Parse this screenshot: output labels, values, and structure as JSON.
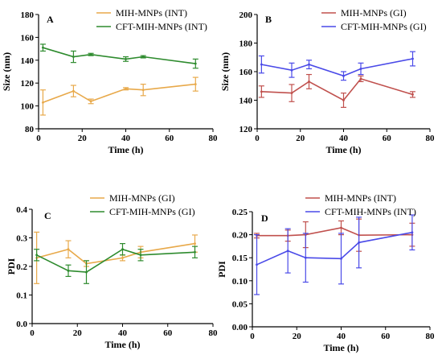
{
  "chart_data": [
    {
      "panel": "A",
      "type": "line",
      "xlabel": "Time (h)",
      "ylabel": "Size (nm)",
      "xlim": [
        0,
        80
      ],
      "ylim": [
        80,
        180
      ],
      "xticks": [
        0,
        20,
        40,
        60,
        80
      ],
      "yticks": [
        80,
        100,
        120,
        140,
        160,
        180
      ],
      "legend_position": "top",
      "series": [
        {
          "name": "MIH-MNPs (INT)",
          "color": "#e8a94a",
          "x": [
            2,
            16,
            24,
            40,
            48,
            72
          ],
          "y": [
            103,
            113,
            104,
            115,
            114,
            119
          ],
          "err": [
            11,
            5,
            2,
            1,
            5,
            6
          ]
        },
        {
          "name": "CFT-MIH-MNPs (INT)",
          "color": "#2e8b2e",
          "x": [
            2,
            16,
            24,
            40,
            48,
            72
          ],
          "y": [
            151,
            143,
            145,
            141,
            143,
            137
          ],
          "err": [
            3,
            5,
            1,
            2,
            1,
            4
          ]
        }
      ]
    },
    {
      "panel": "B",
      "type": "line",
      "xlabel": "Time (h)",
      "ylabel": "Size (nm)",
      "xlim": [
        0,
        80
      ],
      "ylim": [
        120,
        200
      ],
      "xticks": [
        0,
        20,
        40,
        60,
        80
      ],
      "yticks": [
        120,
        140,
        160,
        180,
        200
      ],
      "legend_position": "top",
      "series": [
        {
          "name": "MIH-MNPs (GI)",
          "color": "#c0504d",
          "x": [
            2,
            16,
            24,
            40,
            48,
            72
          ],
          "y": [
            146,
            145,
            153,
            140,
            155,
            144
          ],
          "err": [
            4,
            6,
            5,
            5,
            2,
            2
          ]
        },
        {
          "name": "CFT-MIH-MNPs (GI)",
          "color": "#4a4ae8",
          "x": [
            2,
            16,
            24,
            40,
            48,
            72
          ],
          "y": [
            165,
            161,
            165,
            157,
            162,
            169
          ],
          "err": [
            6,
            5,
            3,
            3,
            4,
            5
          ]
        }
      ]
    },
    {
      "panel": "C",
      "type": "line",
      "xlabel": "Time (h)",
      "ylabel": "PDI",
      "xlim": [
        0,
        80
      ],
      "ylim": [
        0.0,
        0.4
      ],
      "xticks": [
        0,
        20,
        40,
        60,
        80
      ],
      "yticks": [
        "0.0",
        "0.1",
        "0.2",
        "0.3",
        "0.4"
      ],
      "legend_position": "top",
      "series": [
        {
          "name": "MIH-MNPs (GI)",
          "color": "#e8a94a",
          "x": [
            2,
            16,
            24,
            40,
            48,
            72
          ],
          "y": [
            0.23,
            0.26,
            0.21,
            0.23,
            0.25,
            0.28
          ],
          "err": [
            0.09,
            0.03,
            0.01,
            0.01,
            0.02,
            0.03
          ]
        },
        {
          "name": "CFT-MIH-MNPs (GI)",
          "color": "#2e8b2e",
          "x": [
            2,
            16,
            24,
            40,
            48,
            72
          ],
          "y": [
            0.24,
            0.185,
            0.18,
            0.26,
            0.24,
            0.25
          ],
          "err": [
            0.02,
            0.02,
            0.04,
            0.02,
            0.02,
            0.02
          ]
        }
      ]
    },
    {
      "panel": "D",
      "type": "line",
      "xlabel": "Time (h)",
      "ylabel": "PDI",
      "xlim": [
        0,
        80
      ],
      "ylim": [
        0.0,
        0.25
      ],
      "xticks": [
        0,
        20,
        40,
        60,
        80
      ],
      "yticks": [
        "0.00",
        "0.05",
        "0.10",
        "0.15",
        "0.20",
        "0.25"
      ],
      "legend_position": "top",
      "series": [
        {
          "name": "MIH-MNPs (INT)",
          "color": "#c0504d",
          "x": [
            2,
            16,
            24,
            40,
            48,
            72
          ],
          "y": [
            0.198,
            0.198,
            0.2,
            0.215,
            0.199,
            0.2
          ],
          "err": [
            0.005,
            0.012,
            0.028,
            0.015,
            0.035,
            0.025
          ]
        },
        {
          "name": "CFT-MIH-MNPs (INT)",
          "color": "#4a4ae8",
          "x": [
            2,
            16,
            24,
            40,
            48,
            72
          ],
          "y": [
            0.135,
            0.165,
            0.15,
            0.148,
            0.183,
            0.205
          ],
          "err": [
            0.065,
            0.048,
            0.053,
            0.055,
            0.055,
            0.038
          ]
        }
      ]
    }
  ]
}
